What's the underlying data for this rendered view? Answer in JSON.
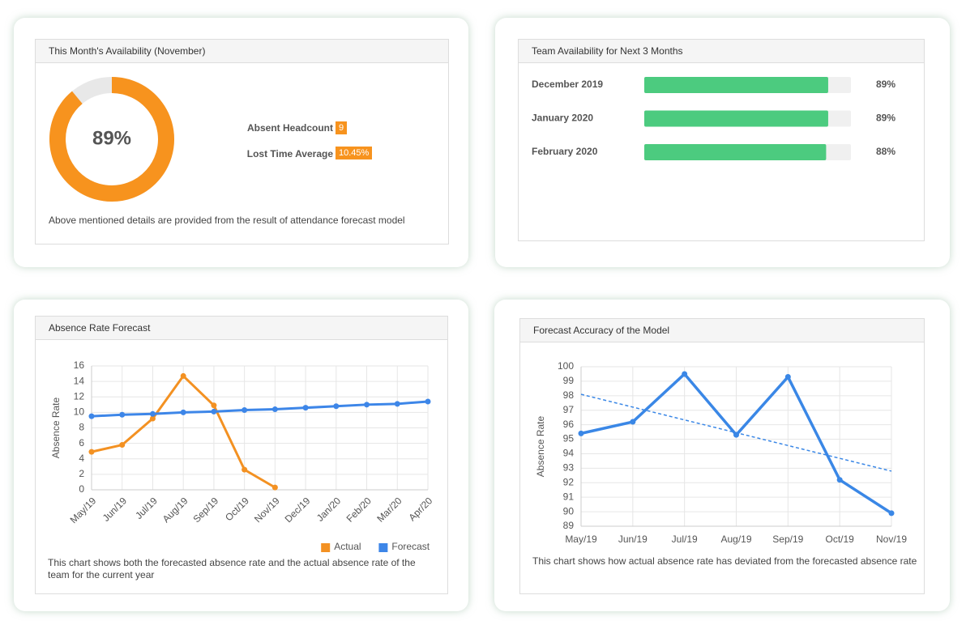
{
  "chart_data": [
    {
      "type": "donut",
      "title": "This Month's Availability (November)",
      "values": [
        89
      ],
      "value_labels": [
        "89%"
      ],
      "xlim": [
        0,
        100
      ],
      "color": "#f7931e",
      "stats": [
        {
          "label": "Absent Headcount",
          "value": "9"
        },
        {
          "label": "Lost Time Average",
          "value": "10.45%"
        }
      ],
      "note": "Above mentioned details are provided from the result of attendance forecast model"
    },
    {
      "type": "hbar",
      "title": "Team Availability for Next 3 Months",
      "categories": [
        "December 2019",
        "January 2020",
        "February 2020"
      ],
      "values": [
        89,
        89,
        88
      ],
      "value_labels": [
        "89%",
        "89%",
        "88%"
      ],
      "xlim": [
        0,
        100
      ],
      "color": "#4ccb7f"
    },
    {
      "type": "line",
      "title": "Absence Rate Forecast",
      "ylabel": "Absence Rate",
      "categories": [
        "May/19",
        "Jun/19",
        "Jul/19",
        "Aug/19",
        "Sep/19",
        "Oct/19",
        "Nov/19",
        "Dec/19",
        "Jan/20",
        "Feb/20",
        "Mar/20",
        "Apr/20"
      ],
      "series": [
        {
          "name": "Actual",
          "color": "#f39122",
          "values": [
            4.9,
            5.8,
            9.2,
            14.7,
            10.9,
            2.6,
            0.3,
            null,
            null,
            null,
            null,
            null
          ]
        },
        {
          "name": "Forecast",
          "color": "#3d86e8",
          "values": [
            9.5,
            9.7,
            9.8,
            10.0,
            10.1,
            10.3,
            10.4,
            10.6,
            10.8,
            11.0,
            11.1,
            11.4
          ]
        }
      ],
      "ylim": [
        0,
        16
      ],
      "yticks": [
        0,
        2,
        4,
        6,
        8,
        10,
        12,
        14,
        16
      ],
      "grid": true,
      "legend": "bottom-right",
      "note": "This chart shows both the forecasted absence rate and the actual absence rate of the team for the current year"
    },
    {
      "type": "line",
      "title": "Forecast Accuracy of the Model",
      "ylabel": "Absence Rate",
      "categories": [
        "May/19",
        "Jun/19",
        "Jul/19",
        "Aug/19",
        "Sep/19",
        "Oct/19",
        "Nov/19"
      ],
      "series": [
        {
          "color": "#3a87e6",
          "values": [
            95.4,
            96.2,
            99.5,
            95.3,
            99.3,
            92.2,
            89.9
          ]
        }
      ],
      "trendline": [
        98.1,
        92.8
      ],
      "ylim": [
        89,
        100
      ],
      "yticks": [
        89,
        90,
        91,
        92,
        93,
        94,
        95,
        96,
        97,
        98,
        99,
        100
      ],
      "grid": true,
      "note": "This chart shows how actual absence rate has deviated from the forecasted absence rate"
    }
  ]
}
